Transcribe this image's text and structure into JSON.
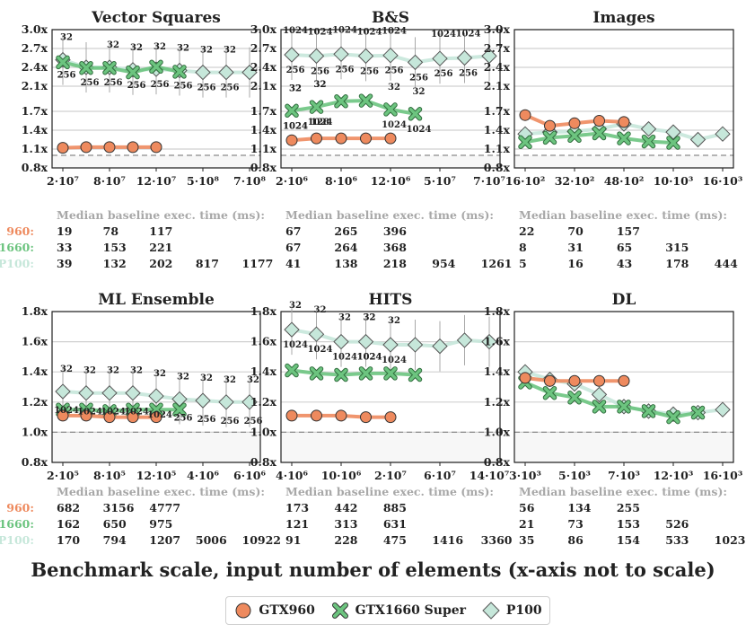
{
  "figure": {
    "xlabel": "Benchmark scale, input number of elements (x-axis not to scale)",
    "median_header": "Median baseline exec. time (ms):",
    "colors": {
      "GTX960": "#ee8a5e",
      "GTX1660 Super": "#6cc47f",
      "P100": "#c6e7da"
    },
    "legend": [
      {
        "name": "GTX960",
        "marker": "circle",
        "color": "#ee8a5e"
      },
      {
        "name": "GTX1660 Super",
        "marker": "x",
        "color": "#6cc47f"
      },
      {
        "name": "P100",
        "marker": "diamond",
        "color": "#c6e7da"
      }
    ]
  },
  "chart_data": [
    {
      "type": "line",
      "title": "Vector Squares",
      "ylim": [
        0.8,
        3.0
      ],
      "yticks": [
        "0.8x",
        "1.1x",
        "1.4x",
        "1.7x",
        "2.1x",
        "2.4x",
        "2.7x",
        "3.0x"
      ],
      "xticks": [
        "2·10⁷",
        "8·10⁷",
        "12·10⁷",
        "5·10⁸",
        "7·10⁸"
      ],
      "xtick_pos": [
        0,
        2,
        4,
        6,
        8
      ],
      "series": [
        {
          "name": "GTX960",
          "values": [
            1.12,
            1.13,
            1.13,
            1.13,
            1.13
          ]
        },
        {
          "name": "GTX1660 Super",
          "values": [
            2.48,
            2.39,
            2.39,
            2.32,
            2.41,
            2.33
          ]
        },
        {
          "name": "P100",
          "values": [
            2.52,
            2.4,
            2.4,
            2.36,
            2.37,
            2.35,
            2.32,
            2.32,
            2.32
          ]
        }
      ],
      "annotations": [
        {
          "i": 0,
          "above": "32",
          "below": "256"
        },
        {
          "i": 1,
          "above": "",
          "below": "256"
        },
        {
          "i": 2,
          "above": "32",
          "below": "256"
        },
        {
          "i": 3,
          "above": "32",
          "below": "256"
        },
        {
          "i": 4,
          "above": "32",
          "below": "256"
        },
        {
          "i": 5,
          "above": "32",
          "below": "256"
        },
        {
          "i": 6,
          "above": "32",
          "below": "256"
        },
        {
          "i": 7,
          "above": "32",
          "below": "256"
        }
      ],
      "median": {
        "GTX960": [
          "19",
          "78",
          "117"
        ],
        "1660": [
          "33",
          "153",
          "221"
        ],
        "P100": [
          "39",
          "132",
          "202",
          "817",
          "1177"
        ]
      }
    },
    {
      "type": "line",
      "title": "B&S",
      "ylim": [
        0.8,
        3.0
      ],
      "yticks": [
        "0.8x",
        "1.1x",
        "1.4x",
        "1.7x",
        "2.1x",
        "2.4x",
        "2.7x",
        "3.0x"
      ],
      "xticks": [
        "2·10⁶",
        "8·10⁶",
        "12·10⁶",
        "5·10⁷",
        "7·10⁷"
      ],
      "xtick_pos": [
        0,
        2,
        4,
        6,
        8
      ],
      "series": [
        {
          "name": "GTX960",
          "values": [
            1.24,
            1.27,
            1.27,
            1.27,
            1.27
          ]
        },
        {
          "name": "GTX1660 Super",
          "values": [
            1.71,
            1.77,
            1.86,
            1.87,
            1.73,
            1.66
          ]
        },
        {
          "name": "P100",
          "values": [
            2.6,
            2.58,
            2.61,
            2.58,
            2.59,
            2.48,
            2.54,
            2.55,
            2.58
          ]
        }
      ],
      "annotations": [
        {
          "i": 0,
          "above": "1024",
          "below": "256"
        },
        {
          "i": 1,
          "above": "1024",
          "below": "256"
        },
        {
          "i": 2,
          "above": "1024",
          "below": "256"
        },
        {
          "i": 3,
          "above": "1024",
          "below": "256"
        },
        {
          "i": 4,
          "above": "1024",
          "below": "256"
        },
        {
          "i": 5,
          "above": "",
          "below": "256"
        },
        {
          "i": 6,
          "above": "1024",
          "below": "256"
        },
        {
          "i": 7,
          "above": "1024",
          "below": "256"
        },
        {
          "i": 0,
          "above": "32",
          "below": "1024"
        },
        {
          "i": 1,
          "above": "32",
          "below": "1024"
        },
        {
          "i": 4,
          "above": "32",
          "below": "1024"
        },
        {
          "i": 5,
          "above": "32",
          "below": "1024"
        },
        {
          "i": 0,
          "above": "32",
          "below": "1024"
        },
        {
          "i": 1,
          "above": "32",
          "below": "128"
        }
      ],
      "median": {
        "GTX960": [
          "67",
          "265",
          "396"
        ],
        "1660": [
          "67",
          "264",
          "368"
        ],
        "P100": [
          "41",
          "138",
          "218",
          "954",
          "1261"
        ]
      }
    },
    {
      "type": "line",
      "title": "Images",
      "ylim": [
        0.8,
        3.0
      ],
      "yticks": [
        "0.8x",
        "1.1x",
        "1.4x",
        "1.7x",
        "2.1x",
        "2.4x",
        "2.7x",
        "3.0x"
      ],
      "xticks": [
        "16·10²",
        "32·10²",
        "48·10²",
        "10·10³",
        "16·10³"
      ],
      "xtick_pos": [
        0,
        2,
        4,
        6,
        8
      ],
      "series": [
        {
          "name": "GTX960",
          "values": [
            1.64,
            1.47,
            1.51,
            1.55,
            1.53
          ]
        },
        {
          "name": "GTX1660 Super",
          "values": [
            1.21,
            1.28,
            1.31,
            1.35,
            1.27,
            1.22,
            1.2
          ]
        },
        {
          "name": "P100",
          "values": [
            1.34,
            1.37,
            1.38,
            1.42,
            1.5,
            1.42,
            1.37,
            1.25,
            1.34
          ]
        }
      ],
      "annotations": [],
      "median": {
        "GTX960": [
          "22",
          "70",
          "157"
        ],
        "1660": [
          "8",
          "31",
          "65",
          "315"
        ],
        "P100": [
          "5",
          "16",
          "43",
          "178",
          "444"
        ]
      }
    },
    {
      "type": "line",
      "title": "ML Ensemble",
      "ylim": [
        0.8,
        1.8
      ],
      "yticks": [
        "0.8x",
        "1.0x",
        "1.2x",
        "1.4x",
        "1.6x",
        "1.8x"
      ],
      "xticks": [
        "2·10⁵",
        "8·10⁵",
        "12·10⁵",
        "4·10⁶",
        "6·10⁶"
      ],
      "xtick_pos": [
        0,
        2,
        4,
        6,
        8
      ],
      "series": [
        {
          "name": "GTX960",
          "values": [
            1.11,
            1.11,
            1.1,
            1.1,
            1.1
          ]
        },
        {
          "name": "GTX1660 Super",
          "values": [
            1.15,
            1.15,
            1.14,
            1.15,
            1.15,
            1.15
          ]
        },
        {
          "name": "P100",
          "values": [
            1.27,
            1.26,
            1.26,
            1.26,
            1.24,
            1.22,
            1.21,
            1.2,
            1.2
          ]
        }
      ],
      "annotations": [
        {
          "i": 0,
          "above": "32",
          "below": "1024"
        },
        {
          "i": 1,
          "above": "32",
          "below": "1024"
        },
        {
          "i": 2,
          "above": "32",
          "below": "1024"
        },
        {
          "i": 3,
          "above": "32",
          "below": "1024"
        },
        {
          "i": 4,
          "above": "32",
          "below": "1024"
        },
        {
          "i": 5,
          "above": "32",
          "below": "256"
        },
        {
          "i": 6,
          "above": "32",
          "below": "256"
        },
        {
          "i": 7,
          "above": "32",
          "below": "256"
        },
        {
          "i": 8,
          "above": "32",
          "below": "256"
        }
      ],
      "median": {
        "GTX960": [
          "682",
          "3156",
          "4777"
        ],
        "1660": [
          "162",
          "650",
          "975"
        ],
        "P100": [
          "170",
          "794",
          "1207",
          "5006",
          "10922"
        ]
      }
    },
    {
      "type": "line",
      "title": "HITS",
      "ylim": [
        0.8,
        1.8
      ],
      "yticks": [
        "0.8x",
        "1.0x",
        "1.2x",
        "1.4x",
        "1.6x",
        "1.8x"
      ],
      "xticks": [
        "4·10⁶",
        "10·10⁶",
        "2·10⁷",
        "6·10⁷",
        "14·10⁷"
      ],
      "xtick_pos": [
        0,
        2,
        4,
        6,
        8
      ],
      "series": [
        {
          "name": "GTX960",
          "values": [
            1.11,
            1.11,
            1.11,
            1.1,
            1.1
          ]
        },
        {
          "name": "GTX1660 Super",
          "values": [
            1.41,
            1.39,
            1.38,
            1.39,
            1.39,
            1.38
          ]
        },
        {
          "name": "P100",
          "values": [
            1.68,
            1.65,
            1.6,
            1.6,
            1.58,
            1.58,
            1.57,
            1.61,
            1.6
          ]
        }
      ],
      "annotations": [
        {
          "i": 0,
          "above": "32",
          "below": "1024"
        },
        {
          "i": 1,
          "above": "32",
          "below": "1024"
        },
        {
          "i": 2,
          "above": "32",
          "below": "1024"
        },
        {
          "i": 3,
          "above": "32",
          "below": "1024"
        },
        {
          "i": 4,
          "above": "32",
          "below": "1024"
        },
        {
          "i": 3,
          "above": "32",
          "below": "1024"
        }
      ],
      "median": {
        "GTX960": [
          "173",
          "442",
          "885"
        ],
        "1660": [
          "121",
          "313",
          "631"
        ],
        "P100": [
          "91",
          "228",
          "475",
          "1416",
          "3360"
        ]
      }
    },
    {
      "type": "line",
      "title": "DL",
      "ylim": [
        0.8,
        1.8
      ],
      "yticks": [
        "0.8x",
        "1.0x",
        "1.2x",
        "1.4x",
        "1.6x",
        "1.8x"
      ],
      "xticks": [
        "3·10³",
        "5·10³",
        "7·10³",
        "12·10³",
        "16·10³"
      ],
      "xtick_pos": [
        0,
        2,
        4,
        6,
        8
      ],
      "series": [
        {
          "name": "GTX960",
          "values": [
            1.36,
            1.34,
            1.34,
            1.34,
            1.34
          ]
        },
        {
          "name": "GTX1660 Super",
          "values": [
            1.33,
            1.26,
            1.23,
            1.17,
            1.17,
            1.14,
            1.1,
            1.13
          ]
        },
        {
          "name": "P100",
          "values": [
            1.4,
            1.35,
            1.32,
            1.25,
            1.17,
            1.14,
            1.12,
            1.13,
            1.15
          ]
        }
      ],
      "annotations": [],
      "median": {
        "GTX960": [
          "56",
          "134",
          "255"
        ],
        "1660": [
          "21",
          "73",
          "153",
          "526"
        ],
        "P100": [
          "35",
          "86",
          "154",
          "533",
          "1023"
        ]
      }
    }
  ]
}
